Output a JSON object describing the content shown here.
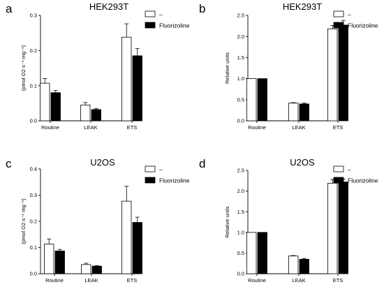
{
  "chart_data": [
    {
      "type": "bar",
      "letter": "a",
      "title": "HEK293T",
      "ylabel": "(pmol O2·s⁻¹·mg⁻¹)",
      "ylim": [
        0,
        0.3
      ],
      "yticks": [
        "0.0",
        "0.1",
        "0.2",
        "0.3"
      ],
      "tick_values": [
        0,
        0.1,
        0.2,
        0.3
      ],
      "categories": [
        "Routine",
        "LEAK",
        "ETS"
      ],
      "legend": [
        "–",
        "Fluorizoline"
      ],
      "legend_position": "top-right",
      "series": [
        {
          "name": "–",
          "color": "#ffffff",
          "values": [
            0.107,
            0.045,
            0.238
          ],
          "errors": [
            0.013,
            0.007,
            0.038
          ]
        },
        {
          "name": "Fluorizoline",
          "color": "#000000",
          "values": [
            0.08,
            0.032,
            0.185
          ],
          "errors": [
            0.006,
            0.003,
            0.021
          ]
        }
      ]
    },
    {
      "type": "bar",
      "letter": "b",
      "title": "HEK293T",
      "ylabel": "Relative units",
      "ylim": [
        0,
        2.5
      ],
      "yticks": [
        "0.0",
        "0.5",
        "1.0",
        "1.5",
        "2.0",
        "2.5"
      ],
      "tick_values": [
        0,
        0.5,
        1.0,
        1.5,
        2.0,
        2.5
      ],
      "categories": [
        "Routine",
        "LEAK",
        "ETS"
      ],
      "legend": [
        "–",
        "Fluorizoline"
      ],
      "legend_position": "top-right",
      "series": [
        {
          "name": "–",
          "color": "#ffffff",
          "values": [
            1.0,
            0.42,
            2.18
          ],
          "errors": [
            0,
            0.01,
            0.08
          ]
        },
        {
          "name": "Fluorizoline",
          "color": "#000000",
          "values": [
            1.0,
            0.4,
            2.27
          ],
          "errors": [
            0,
            0.02,
            0.11
          ]
        }
      ]
    },
    {
      "type": "bar",
      "letter": "c",
      "title": "U2OS",
      "ylabel": "(pmol O2·s⁻¹·mg⁻¹)",
      "ylim": [
        0,
        0.4
      ],
      "yticks": [
        "0.0",
        "0.1",
        "0.2",
        "0.3",
        "0.4"
      ],
      "tick_values": [
        0,
        0.1,
        0.2,
        0.3,
        0.4
      ],
      "categories": [
        "Routine",
        "LEAK",
        "ETS"
      ],
      "legend": [
        "–",
        "Fluorizoline"
      ],
      "legend_position": "top-right",
      "series": [
        {
          "name": "–",
          "color": "#ffffff",
          "values": [
            0.113,
            0.035,
            0.277
          ],
          "errors": [
            0.02,
            0.005,
            0.057
          ]
        },
        {
          "name": "Fluorizoline",
          "color": "#000000",
          "values": [
            0.087,
            0.029,
            0.196
          ],
          "errors": [
            0.006,
            0.002,
            0.02
          ]
        }
      ]
    },
    {
      "type": "bar",
      "letter": "d",
      "title": "U2OS",
      "ylabel": "Relative units",
      "ylim": [
        0,
        2.5
      ],
      "yticks": [
        "0.0",
        "0.5",
        "1.0",
        "1.5",
        "2.0",
        "2.5"
      ],
      "tick_values": [
        0,
        0.5,
        1.0,
        1.5,
        2.0,
        2.5
      ],
      "categories": [
        "Routine",
        "LEAK",
        "ETS"
      ],
      "legend": [
        "–",
        "Fluorizoline"
      ],
      "legend_position": "top-right",
      "series": [
        {
          "name": "–",
          "color": "#ffffff",
          "values": [
            1.0,
            0.43,
            2.19
          ],
          "errors": [
            0,
            0.01,
            0.09
          ]
        },
        {
          "name": "Fluorizoline",
          "color": "#000000",
          "values": [
            1.0,
            0.35,
            2.22
          ],
          "errors": [
            0,
            0.02,
            0.07
          ]
        }
      ]
    }
  ]
}
